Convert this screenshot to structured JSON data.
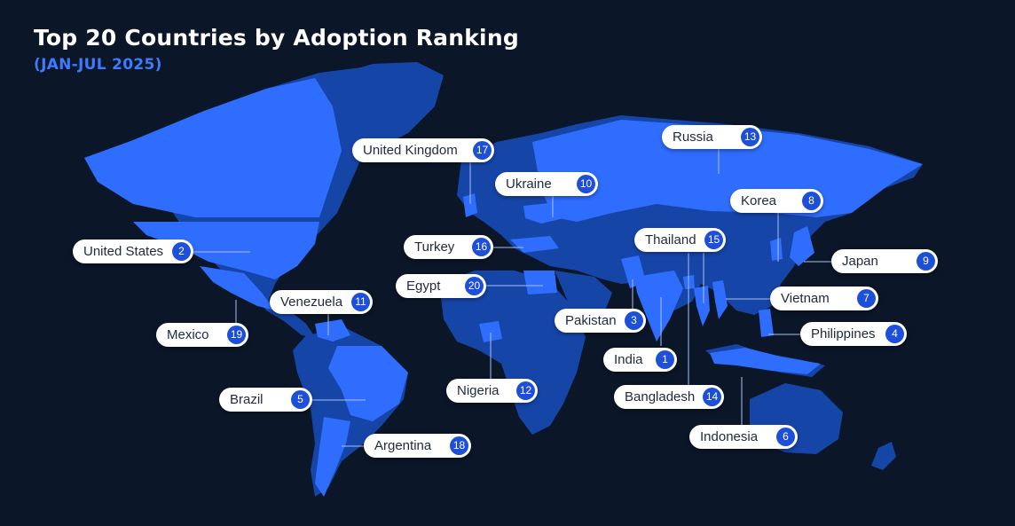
{
  "title": "Top 20 Countries by Adoption Ranking",
  "subtitle": "(JAN-JUL 2025)",
  "colors": {
    "background": "#0b1628",
    "land": "#1645a8",
    "highlighted": "#2f6dff",
    "accent": "#3d7bff",
    "rank_badge": "#1d4fd8"
  },
  "countries": [
    {
      "name": "India",
      "rank": "1"
    },
    {
      "name": "United States",
      "rank": "2"
    },
    {
      "name": "Pakistan",
      "rank": "3"
    },
    {
      "name": "Philippines",
      "rank": "4"
    },
    {
      "name": "Brazil",
      "rank": "5"
    },
    {
      "name": "Indonesia",
      "rank": "6"
    },
    {
      "name": "Vietnam",
      "rank": "7"
    },
    {
      "name": "Korea",
      "rank": "8"
    },
    {
      "name": "Japan",
      "rank": "9"
    },
    {
      "name": "Ukraine",
      "rank": "10"
    },
    {
      "name": "Venezuela",
      "rank": "11"
    },
    {
      "name": "Nigeria",
      "rank": "12"
    },
    {
      "name": "Russia",
      "rank": "13"
    },
    {
      "name": "Bangladesh",
      "rank": "14"
    },
    {
      "name": "Thailand",
      "rank": "15"
    },
    {
      "name": "Turkey",
      "rank": "16"
    },
    {
      "name": "United Kingdom",
      "rank": "17"
    },
    {
      "name": "Argentina",
      "rank": "18"
    },
    {
      "name": "Mexico",
      "rank": "19"
    },
    {
      "name": "Egypt",
      "rank": "20"
    }
  ]
}
